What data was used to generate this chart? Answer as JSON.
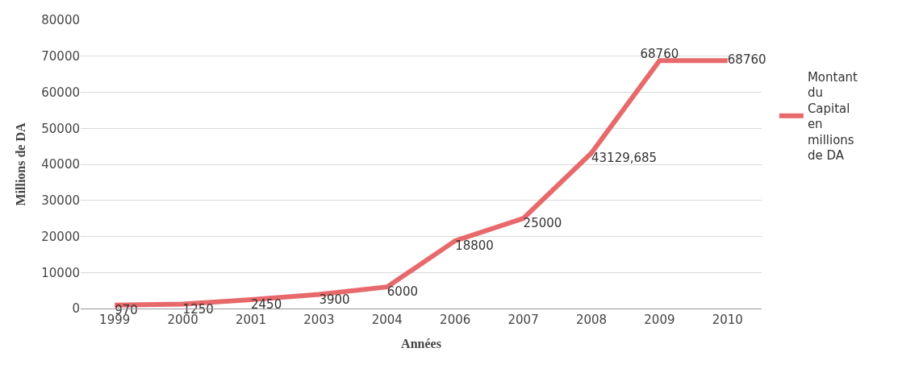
{
  "chart_data": {
    "type": "line",
    "xlabel": "Années",
    "ylabel": "Millions de DA",
    "categories": [
      "1999",
      "2000",
      "2001",
      "2003",
      "2004",
      "2006",
      "2007",
      "2008",
      "2009",
      "2010"
    ],
    "series": [
      {
        "name": "Montant du Capital en millions de DA",
        "color": "#e8696b",
        "values": [
          970,
          1250,
          2450,
          3900,
          6000,
          18800,
          25000,
          43129.685,
          68760,
          68760
        ],
        "value_labels": [
          "970",
          "1250",
          "2450",
          "3900",
          "6000",
          "18800",
          "25000",
          "43129,685",
          "68760",
          "68760"
        ]
      }
    ],
    "ylim": [
      0,
      80000
    ],
    "yticks": [
      0,
      10000,
      20000,
      30000,
      40000,
      50000,
      60000,
      70000,
      80000
    ],
    "grid": "y",
    "legend": "right",
    "marker": "none",
    "line_style": "solid"
  }
}
